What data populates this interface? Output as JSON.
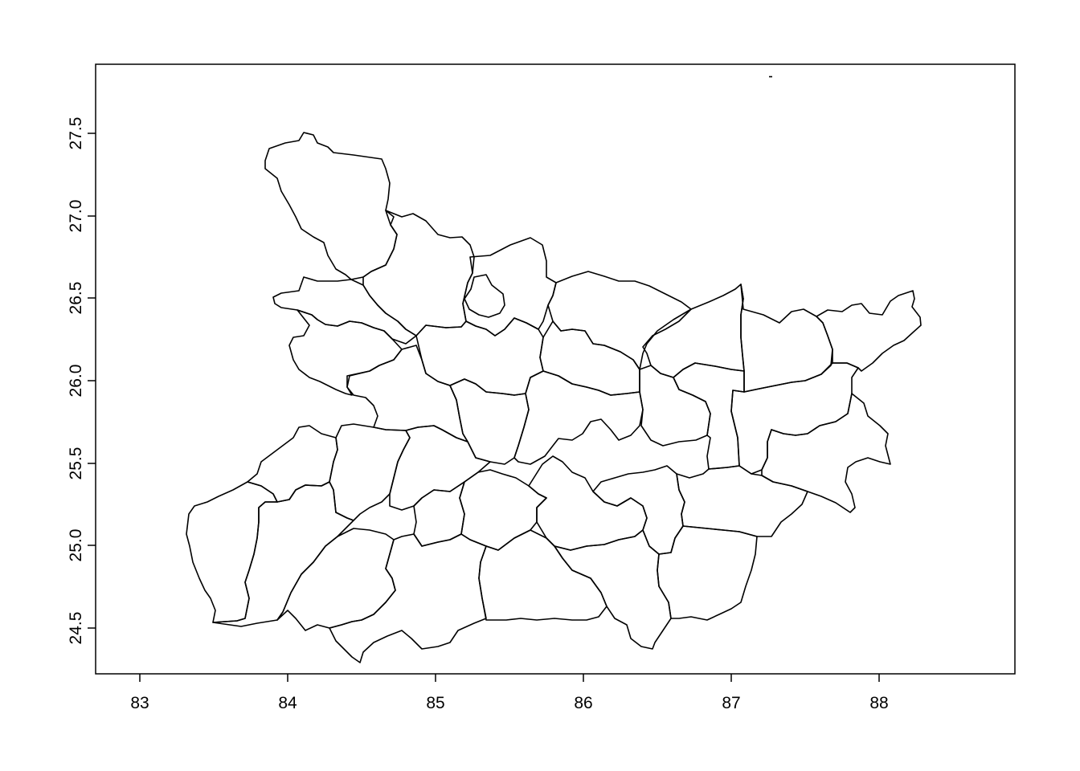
{
  "map": {
    "x_ticks": [
      "83",
      "84",
      "85",
      "86",
      "87",
      "88"
    ],
    "y_ticks": [
      "24.5",
      "25.0",
      "25.5",
      "26.0",
      "26.5",
      "27.0",
      "27.5"
    ],
    "xlim": [
      82.7,
      88.85
    ],
    "ylim": [
      24.27,
      27.98
    ],
    "stroke_color": "#000000",
    "background": "#ffffff"
  }
}
